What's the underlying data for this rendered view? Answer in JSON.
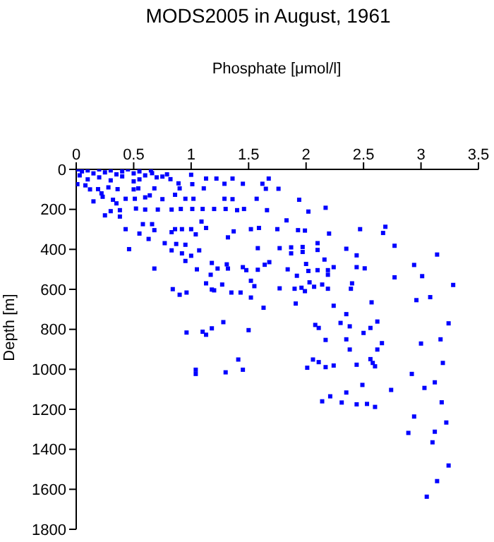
{
  "chart_data": {
    "type": "scatter",
    "title": "MODS2005 in August, 1961",
    "xlabel": "Phosphate [μmol/l]",
    "ylabel": "Depth [m]",
    "xlim": [
      0,
      3.5
    ],
    "xticks": [
      0,
      0.5,
      1,
      1.5,
      2,
      2.5,
      3,
      3.5
    ],
    "ylim": [
      1800,
      0
    ],
    "yticks": [
      0,
      200,
      400,
      600,
      800,
      1000,
      1200,
      1400,
      1600,
      1800
    ],
    "grid": false,
    "legend": false,
    "marker": "square",
    "series": [
      {
        "color": "#0000ff",
        "x": [
          1.675,
          1.62,
          1.65,
          1.76,
          1.57,
          1.94,
          1.66,
          2.02,
          2.17,
          1.83,
          1.59,
          1.75,
          1.93,
          1.99,
          2.2,
          2.47,
          2.69,
          2.67,
          2.77,
          3.14,
          1.58,
          1.77,
          1.87,
          1.97,
          2.1,
          2.1,
          2.35,
          1.87,
          1.97,
          2.44,
          2.16,
          1.68,
          1.64,
          2.0,
          1.84,
          1.58,
          2.02,
          2.1,
          2.19,
          2.24,
          2.44,
          2.51,
          2.94,
          2.19,
          1.92,
          2.77,
          3.01,
          2.03,
          2.14,
          2.4,
          2.39,
          1.55,
          1.77,
          1.9,
          1.96,
          2.07,
          2.19,
          1.99,
          3.28,
          2.96,
          3.08,
          2.57,
          1.63,
          1.91,
          2.24,
          2.35,
          2.62,
          2.3,
          2.08,
          2.11,
          2.38,
          2.56,
          2.5,
          3.24,
          2.17,
          2.35,
          2.66,
          3.0,
          3.17,
          2.38,
          2.62,
          2.06,
          2.11,
          2.17,
          2.01,
          2.24,
          2.44,
          2.56,
          2.58,
          2.6,
          3.19,
          2.92,
          2.49,
          3.12,
          3.03,
          2.74,
          2.35,
          2.21,
          2.14,
          2.31,
          2.44,
          2.53,
          2.6,
          3.18,
          2.94,
          3.22,
          2.89,
          3.12,
          3.1,
          3.24,
          3.14,
          3.05,
          1.04,
          1.04,
          1.3,
          1.41,
          1.45,
          1.0,
          0.75,
          0.82,
          1.13,
          1.22,
          1.36,
          0.66,
          0.79,
          0.01,
          0.19,
          0.36,
          0.54,
          0.68,
          0.89,
          0.9,
          1.01,
          1.11,
          1.29,
          1.45,
          0.23,
          0.32,
          0.43,
          0.51,
          0.64,
          0.75,
          0.86,
          0.95,
          1.02,
          1.29,
          1.36,
          0.25,
          0.38,
          0.3,
          0.52,
          0.6,
          0.71,
          0.83,
          0.91,
          1.01,
          1.1,
          1.2,
          1.3,
          1.4,
          1.46,
          0.38,
          0.43,
          0.58,
          0.66,
          0.68,
          0.55,
          0.63,
          0.83,
          0.86,
          0.92,
          1.0,
          1.04,
          1.09,
          1.13,
          1.37,
          1.32,
          1.52,
          0.46,
          0.77,
          0.87,
          0.95,
          0.83,
          0.92,
          1.0,
          1.07,
          0.95,
          0.68,
          1.05,
          1.18,
          1.17,
          1.13,
          1.23,
          1.32,
          1.31,
          1.45,
          1.48,
          1.27,
          1.52,
          0.84,
          0.9,
          0.96,
          1.18,
          1.2,
          1.35,
          1.43,
          1.52,
          1.28,
          0.96,
          1.1,
          1.13,
          1.18,
          1.5,
          0.02,
          0.05,
          0.1,
          0.15,
          0.2,
          0.25,
          0.3,
          0.35,
          0.4,
          0.45,
          0.5,
          0.55,
          0.6,
          0.65,
          0.7,
          0.1,
          0.2,
          0.3,
          0.4,
          0.5,
          0.55,
          0.03,
          0.08,
          0.12,
          0.22,
          0.28,
          0.5,
          0.6,
          0.15,
          0.35
        ],
        "values": [
          46,
          72,
          97,
          97,
          147,
          152,
          204,
          211,
          192,
          255,
          293,
          299,
          304,
          306,
          321,
          299,
          287,
          318,
          382,
          426,
          394,
          394,
          390,
          388,
          403,
          369,
          397,
          420,
          413,
          430,
          451,
          464,
          477,
          473,
          500,
          502,
          508,
          504,
          504,
          489,
          489,
          495,
          478,
          527,
          532,
          540,
          534,
          565,
          576,
          570,
          597,
          584,
          595,
          597,
          592,
          587,
          597,
          609,
          578,
          654,
          639,
          665,
          692,
          671,
          682,
          724,
          761,
          768,
          778,
          793,
          785,
          793,
          818,
          770,
          853,
          850,
          869,
          871,
          850,
          901,
          901,
          951,
          964,
          989,
          992,
          981,
          977,
          949,
          968,
          985,
          968,
          1023,
          1078,
          1065,
          1093,
          1103,
          1116,
          1135,
          1160,
          1166,
          1175,
          1173,
          1188,
          1165,
          1236,
          1266,
          1318,
          1312,
          1365,
          1481,
          1559,
          1637,
          1002,
          1023,
          1015,
          951,
          1002,
          27,
          36,
          49,
          46,
          46,
          46,
          19,
          25,
          74,
          99,
          99,
          95,
          95,
          70,
          95,
          74,
          95,
          72,
          72,
          137,
          152,
          147,
          147,
          130,
          149,
          127,
          147,
          147,
          147,
          149,
          230,
          204,
          209,
          196,
          201,
          201,
          201,
          198,
          198,
          198,
          198,
          198,
          204,
          198,
          236,
          299,
          274,
          274,
          304,
          321,
          348,
          314,
          299,
          299,
          299,
          325,
          261,
          293,
          310,
          340,
          299,
          399,
          369,
          373,
          377,
          405,
          420,
          432,
          405,
          458,
          496,
          500,
          468,
          527,
          570,
          496,
          496,
          475,
          489,
          504,
          576,
          557,
          599,
          627,
          616,
          601,
          605,
          616,
          616,
          641,
          764,
          816,
          812,
          827,
          795,
          804,
          0,
          10,
          5,
          20,
          0,
          15,
          5,
          25,
          10,
          0,
          20,
          10,
          30,
          5,
          40,
          50,
          40,
          55,
          35,
          60,
          50,
          30,
          80,
          100,
          120,
          90,
          100,
          140,
          160,
          170
        ]
      }
    ]
  }
}
